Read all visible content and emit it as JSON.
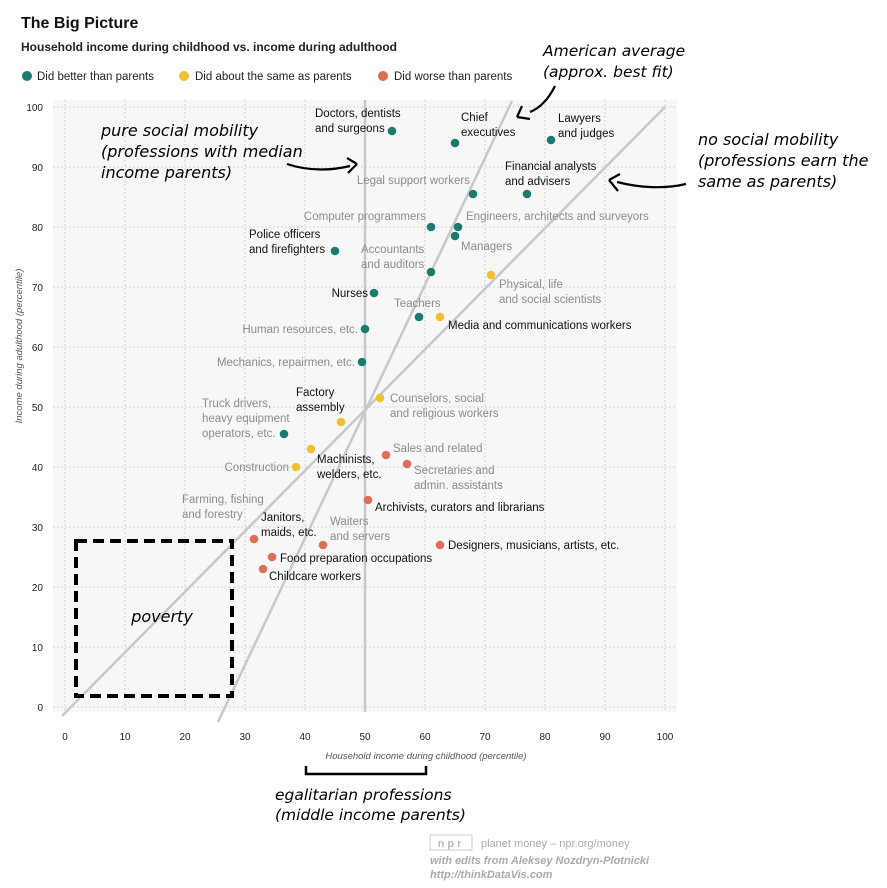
{
  "header": {
    "title": "The Big Picture",
    "subtitle": "Household income during childhood vs. income during adulthood"
  },
  "legend": [
    {
      "label": "Did better than parents",
      "color": "#1a7a6e"
    },
    {
      "label": "Did about the same as parents",
      "color": "#f0c030"
    },
    {
      "label": "Did worse than parents",
      "color": "#dc6e5a"
    }
  ],
  "annotations": {
    "american_average": [
      "American average",
      "(approx. best fit)"
    ],
    "pure_mobility": [
      "pure social mobility",
      "(professions with median",
      "income parents)"
    ],
    "no_mobility": [
      "no social mobility",
      "(professions earn the",
      "same as parents)"
    ],
    "poverty": "poverty",
    "egalitarian": [
      "egalitarian professions",
      "(middle income parents)"
    ]
  },
  "credits": {
    "logo": "npr",
    "line1": "planet money – npr.org/money",
    "line2": "with edits from Aleksey Nozdryn-Plotnicki",
    "line3": "http://thinkDataVis.com"
  },
  "chart_data": {
    "type": "scatter",
    "title": "The Big Picture",
    "subtitle": "Household income during childhood vs. income during adulthood",
    "xlabel": "Household income during childhood (percentile)",
    "ylabel": "Income during adulthood (percentile)",
    "xlim": [
      0,
      100
    ],
    "ylim": [
      0,
      100
    ],
    "xticks": [
      0,
      10,
      20,
      30,
      40,
      50,
      60,
      70,
      80,
      90,
      100
    ],
    "yticks": [
      0,
      10,
      20,
      30,
      40,
      50,
      60,
      70,
      80,
      90,
      100
    ],
    "grid": true,
    "legend_position": "top-left",
    "series": [
      {
        "name": "Did better than parents",
        "color": "#1a7a6e",
        "points": [
          {
            "label": "Doctors, dentists and surgeons",
            "x": 54.5,
            "y": 96
          },
          {
            "label": "Chief executives",
            "x": 65,
            "y": 94
          },
          {
            "label": "Lawyers and judges",
            "x": 81,
            "y": 94.5
          },
          {
            "label": "Legal support workers",
            "x": 68,
            "y": 85.5
          },
          {
            "label": "Financial analysts and advisers",
            "x": 77,
            "y": 85.5
          },
          {
            "label": "Computer programmers",
            "x": 61,
            "y": 80
          },
          {
            "label": "Engineers, architects and surveyors",
            "x": 65.5,
            "y": 80
          },
          {
            "label": "Managers",
            "x": 65,
            "y": 78.5
          },
          {
            "label": "Police officers and firefighters",
            "x": 45,
            "y": 76
          },
          {
            "label": "Accountants and auditors",
            "x": 61,
            "y": 72.5
          },
          {
            "label": "Nurses",
            "x": 51.5,
            "y": 69
          },
          {
            "label": "Teachers",
            "x": 59,
            "y": 65
          },
          {
            "label": "Human resources, etc.",
            "x": 50,
            "y": 63
          },
          {
            "label": "Mechanics, repairmen, etc.",
            "x": 49.5,
            "y": 57.5
          },
          {
            "label": "Truck drivers, heavy equipment operators, etc.",
            "x": 36.5,
            "y": 45.5
          }
        ]
      },
      {
        "name": "Did about the same as parents",
        "color": "#f0c030",
        "points": [
          {
            "label": "Physical, life and social scientists",
            "x": 71,
            "y": 72
          },
          {
            "label": "Media and communications workers",
            "x": 62.5,
            "y": 65
          },
          {
            "label": "Counselors, social and religious workers",
            "x": 52.5,
            "y": 51.5
          },
          {
            "label": "Factory assembly",
            "x": 46,
            "y": 47.5
          },
          {
            "label": "Machinists, welders, etc.",
            "x": 41,
            "y": 43
          },
          {
            "label": "Construction",
            "x": 38.5,
            "y": 40
          }
        ]
      },
      {
        "name": "Did worse than parents",
        "color": "#dc6e5a",
        "points": [
          {
            "label": "Sales and related",
            "x": 53.5,
            "y": 42
          },
          {
            "label": "Secretaries and admin. assistants",
            "x": 57,
            "y": 40.5
          },
          {
            "label": "Archivists, curators and librarians",
            "x": 50.5,
            "y": 34.5
          },
          {
            "label": "Farming, fishing and forestry",
            "x": 31.5,
            "y": 28
          },
          {
            "label": "Waiters and servers",
            "x": 43,
            "y": 27
          },
          {
            "label": "Designers, musicians, artists, etc.",
            "x": 62.5,
            "y": 27
          },
          {
            "label": "Food preparation occupations",
            "x": 34.5,
            "y": 25
          },
          {
            "label": "Childcare workers",
            "x": 33,
            "y": 23
          },
          {
            "label": "Janitors, maids, etc.",
            "x": 31.5,
            "y": 28
          }
        ]
      }
    ]
  }
}
